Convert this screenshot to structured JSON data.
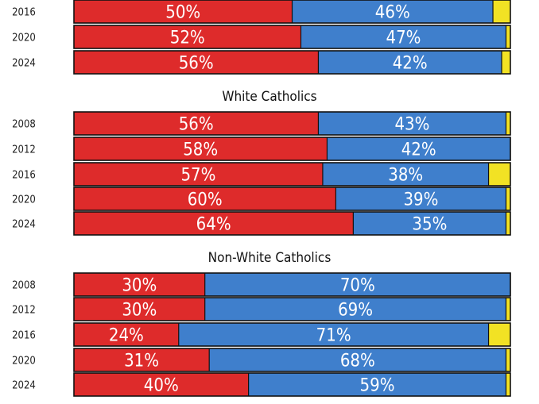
{
  "colors": {
    "republican": "#de2b2b",
    "democrat": "#3f7fcc",
    "other": "#f2e224",
    "outline": "#111111"
  },
  "chart_data": [
    {
      "type": "bar",
      "orientation": "horizontal",
      "stacked": true,
      "title": "",
      "categories": [
        "2016",
        "2020",
        "2024"
      ],
      "series": [
        {
          "values": [
            50,
            52,
            56
          ],
          "labels": [
            "50%",
            "52%",
            "56%"
          ]
        },
        {
          "values": [
            46,
            47,
            42
          ],
          "labels": [
            "46%",
            "47%",
            "42%"
          ]
        },
        {
          "values": [
            4,
            1,
            2
          ]
        }
      ],
      "xlim": [
        0,
        100
      ]
    },
    {
      "type": "bar",
      "orientation": "horizontal",
      "stacked": true,
      "title": "White Catholics",
      "categories": [
        "2008",
        "2012",
        "2016",
        "2020",
        "2024"
      ],
      "series": [
        {
          "values": [
            56,
            58,
            57,
            60,
            64
          ],
          "labels": [
            "56%",
            "58%",
            "57%",
            "60%",
            "64%"
          ]
        },
        {
          "values": [
            43,
            42,
            38,
            39,
            35
          ],
          "labels": [
            "43%",
            "42%",
            "38%",
            "39%",
            "35%"
          ]
        },
        {
          "values": [
            1,
            0,
            5,
            1,
            1
          ]
        }
      ],
      "xlim": [
        0,
        100
      ]
    },
    {
      "type": "bar",
      "orientation": "horizontal",
      "stacked": true,
      "title": "Non-White Catholics",
      "categories": [
        "2008",
        "2012",
        "2016",
        "2020",
        "2024"
      ],
      "series": [
        {
          "values": [
            30,
            30,
            24,
            31,
            40
          ],
          "labels": [
            "30%",
            "30%",
            "24%",
            "31%",
            "40%"
          ]
        },
        {
          "values": [
            70,
            69,
            71,
            68,
            59
          ],
          "labels": [
            "70%",
            "69%",
            "71%",
            "68%",
            "59%"
          ]
        },
        {
          "values": [
            0,
            1,
            5,
            1,
            1
          ]
        }
      ],
      "xlim": [
        0,
        100
      ]
    }
  ]
}
